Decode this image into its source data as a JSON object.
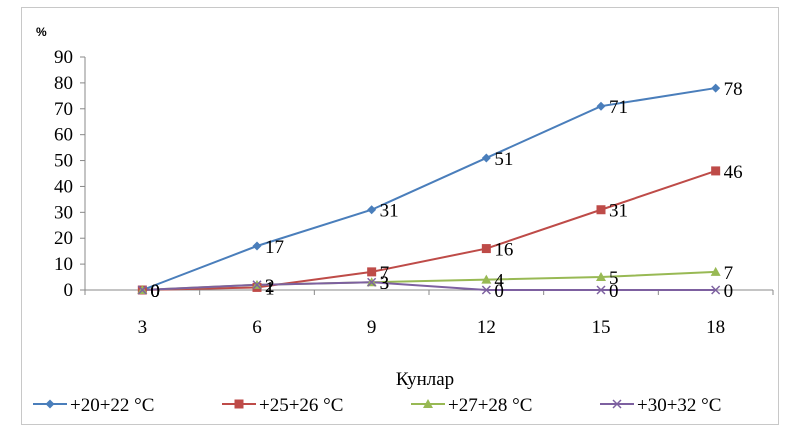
{
  "chart_data": {
    "type": "line",
    "title": "",
    "ylabel": "%",
    "xlabel": "Кунлар",
    "x": [
      3,
      6,
      9,
      12,
      15,
      18
    ],
    "xticks": [
      "3",
      "6",
      "9",
      "12",
      "15",
      "18"
    ],
    "yticks": [
      "0",
      "10",
      "20",
      "30",
      "40",
      "50",
      "60",
      "70",
      "80",
      "90"
    ],
    "ylim": [
      0,
      90
    ],
    "grid": false,
    "legend_position": "bottom",
    "series": [
      {
        "name": "+20+22 °C",
        "color": "#4a7ebb",
        "marker": "diamond",
        "values": [
          0,
          17,
          31,
          51,
          71,
          78
        ],
        "labels": [
          "0",
          "17",
          "31",
          "51",
          "71",
          "78"
        ]
      },
      {
        "name": "+25+26 °C",
        "color": "#be4b48",
        "marker": "square",
        "values": [
          0,
          1,
          7,
          16,
          31,
          46
        ],
        "labels": [
          "0",
          "1",
          "7",
          "16",
          "31",
          "46"
        ]
      },
      {
        "name": "+27+28 °C",
        "color": "#98b954",
        "marker": "triangle",
        "values": [
          0,
          2,
          3,
          4,
          5,
          7
        ],
        "labels": [
          "0",
          "2",
          "3",
          "4",
          "5",
          "7"
        ]
      },
      {
        "name": "+30+32 °C",
        "color": "#7d60a0",
        "marker": "x",
        "values": [
          0,
          2,
          3,
          0,
          0,
          0
        ],
        "labels": [
          "0",
          "2",
          "3",
          "0",
          "0",
          "0"
        ]
      }
    ]
  }
}
